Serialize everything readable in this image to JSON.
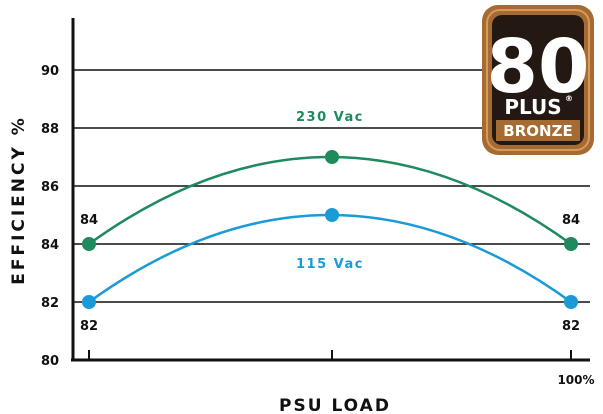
{
  "chart_data": {
    "type": "line",
    "xlabel": "PSU LOAD",
    "ylabel": "EFFICIENCY %",
    "ylim": [
      80,
      91
    ],
    "y_ticks": [
      80,
      82,
      84,
      86,
      88,
      90
    ],
    "x_end_label": "100%",
    "x": [
      20,
      50,
      100
    ],
    "grid": "horizontal",
    "series": [
      {
        "name": "230 Vac",
        "values": [
          84,
          87,
          84
        ],
        "color": "#1e8a5e"
      },
      {
        "name": "115 Vac",
        "values": [
          82,
          85,
          82
        ],
        "color": "#1a9ad6"
      }
    ],
    "point_labels": [
      {
        "text": "84",
        "x": 20,
        "series": "230 Vac"
      },
      {
        "text": "84",
        "x": 100,
        "series": "230 Vac"
      },
      {
        "text": "82",
        "x": 20,
        "series": "115 Vac"
      },
      {
        "text": "82",
        "x": 100,
        "series": "115 Vac"
      }
    ]
  },
  "badge": {
    "number": "80",
    "plus": "PLUS",
    "registered": "®",
    "tier": "BRONZE"
  }
}
